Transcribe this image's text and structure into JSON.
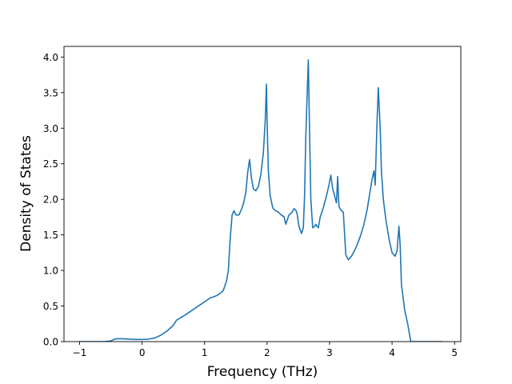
{
  "chart_data": {
    "type": "line",
    "title": "",
    "xlabel": "Frequency (THz)",
    "ylabel": "Density of States",
    "xlim": [
      -1.25,
      5.1
    ],
    "ylim": [
      0,
      4.15
    ],
    "x_ticks": [
      -1,
      0,
      1,
      2,
      3,
      4,
      5
    ],
    "y_ticks": [
      0.0,
      0.5,
      1.0,
      1.5,
      2.0,
      2.5,
      3.0,
      3.5,
      4.0
    ],
    "x_tick_labels": [
      "−1",
      "0",
      "1",
      "2",
      "3",
      "4",
      "5"
    ],
    "y_tick_labels": [
      "0.0",
      "0.5",
      "1.0",
      "1.5",
      "2.0",
      "2.5",
      "3.0",
      "3.5",
      "4.0"
    ],
    "grid": false,
    "line_color": "#1f77b4",
    "series": [
      {
        "x": [
          -1.0,
          -0.6,
          -0.5,
          -0.45,
          -0.4,
          -0.3,
          -0.2,
          -0.1,
          0.0,
          0.1,
          0.2,
          0.3,
          0.4,
          0.45,
          0.5,
          0.55,
          0.7,
          0.9,
          1.0,
          1.1,
          1.15,
          1.2,
          1.25,
          1.3,
          1.35,
          1.38,
          1.41,
          1.44,
          1.47,
          1.5,
          1.55,
          1.6,
          1.63,
          1.66,
          1.69,
          1.72,
          1.75,
          1.78,
          1.82,
          1.86,
          1.9,
          1.94,
          1.97,
          1.99,
          2.0,
          2.02,
          2.05,
          2.09,
          2.12,
          2.18,
          2.24,
          2.27,
          2.3,
          2.35,
          2.38,
          2.4,
          2.43,
          2.46,
          2.48,
          2.51,
          2.55,
          2.58,
          2.6,
          2.62,
          2.64,
          2.66,
          2.68,
          2.7,
          2.73,
          2.76,
          2.78,
          2.8,
          2.82,
          2.85,
          2.9,
          2.95,
          2.99,
          3.02,
          3.05,
          3.08,
          3.11,
          3.13,
          3.15,
          3.18,
          3.22,
          3.26,
          3.3,
          3.35,
          3.4,
          3.45,
          3.5,
          3.55,
          3.6,
          3.65,
          3.68,
          3.71,
          3.73,
          3.76,
          3.78,
          3.81,
          3.83,
          3.86,
          3.9,
          3.95,
          4.0,
          4.05,
          4.08,
          4.11,
          4.13,
          4.15,
          4.18,
          4.2,
          4.25,
          4.3,
          4.33,
          4.36,
          4.4,
          4.6,
          4.8
        ],
        "y": [
          0.0,
          0.0,
          0.01,
          0.03,
          0.04,
          0.04,
          0.035,
          0.03,
          0.03,
          0.035,
          0.05,
          0.09,
          0.15,
          0.19,
          0.23,
          0.3,
          0.38,
          0.5,
          0.56,
          0.62,
          0.63,
          0.65,
          0.68,
          0.72,
          0.85,
          1.0,
          1.45,
          1.78,
          1.84,
          1.78,
          1.78,
          1.88,
          1.97,
          2.1,
          2.38,
          2.56,
          2.3,
          2.15,
          2.12,
          2.18,
          2.35,
          2.65,
          3.1,
          3.62,
          3.1,
          2.4,
          2.05,
          1.88,
          1.85,
          1.82,
          1.77,
          1.76,
          1.65,
          1.78,
          1.8,
          1.82,
          1.87,
          1.85,
          1.8,
          1.62,
          1.52,
          1.6,
          2.05,
          2.9,
          3.45,
          3.96,
          2.95,
          2.0,
          1.6,
          1.62,
          1.65,
          1.62,
          1.6,
          1.75,
          1.88,
          2.05,
          2.2,
          2.34,
          2.15,
          2.05,
          1.95,
          2.32,
          1.9,
          1.85,
          1.82,
          1.22,
          1.15,
          1.2,
          1.28,
          1.38,
          1.5,
          1.65,
          1.85,
          2.12,
          2.28,
          2.4,
          2.2,
          3.1,
          3.57,
          3.0,
          2.4,
          2.0,
          1.72,
          1.45,
          1.25,
          1.2,
          1.28,
          1.62,
          1.35,
          0.8,
          0.6,
          0.45,
          0.25,
          0.0,
          0.0,
          0.0,
          0.0,
          0.0,
          0.0
        ]
      }
    ]
  }
}
